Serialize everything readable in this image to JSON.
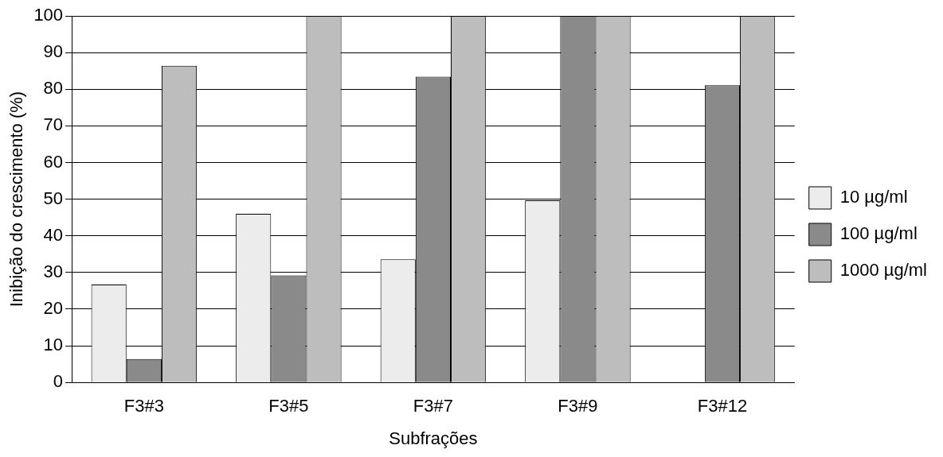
{
  "chart_data": {
    "type": "bar",
    "xlabel": "Subfrações",
    "ylabel": "Inibição do crescimento (%)",
    "categories": [
      "F3#3",
      "F3#5",
      "F3#7",
      "F3#9",
      "F3#12"
    ],
    "series": [
      {
        "name": "10 µg/ml",
        "color": "#ececec",
        "values": [
          26.7,
          46,
          33.6,
          49.7,
          0
        ]
      },
      {
        "name": "100 µg/ml",
        "color": "#8a8a8a",
        "values": [
          6.4,
          29.2,
          83.4,
          100,
          81.1
        ]
      },
      {
        "name": "1000 µg/ml",
        "color": "#bdbdbd",
        "values": [
          86.4,
          100,
          100,
          100,
          100
        ]
      }
    ],
    "ylim": [
      0,
      100
    ],
    "yticks": [
      0,
      10,
      20,
      30,
      40,
      50,
      60,
      70,
      80,
      90,
      100
    ],
    "grid": "y",
    "legend": "right"
  }
}
